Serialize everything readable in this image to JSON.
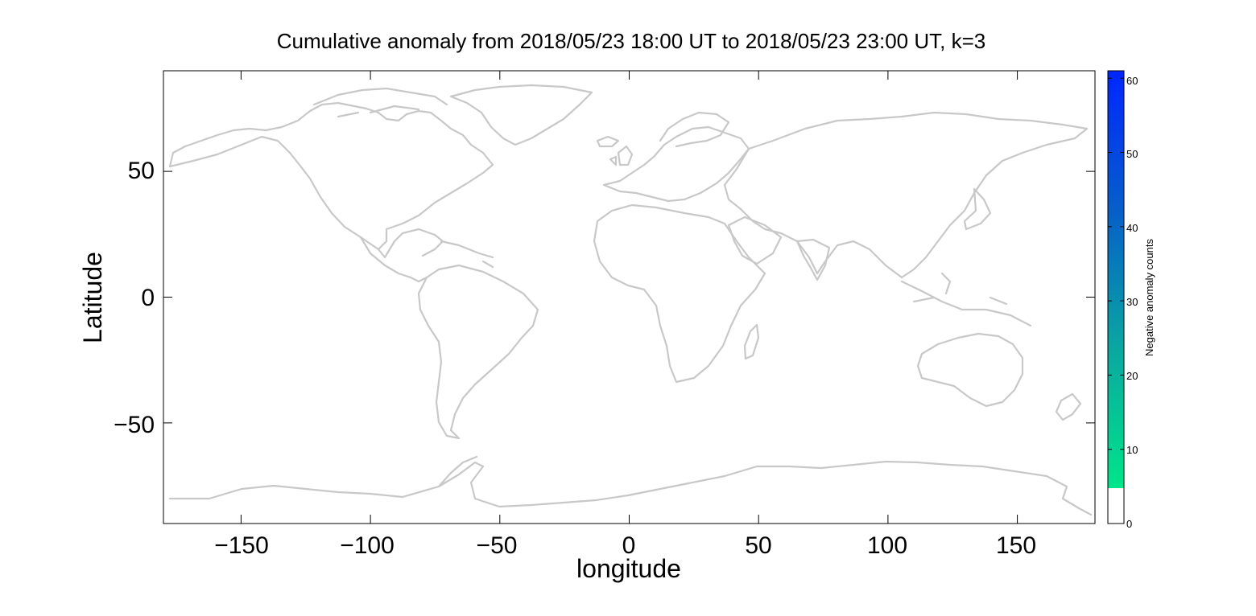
{
  "chart_data": {
    "type": "heatmap",
    "title": "Cumulative anomaly from 2018/05/23 18:00 UT to 2018/05/23 23:00 UT, k=3",
    "xlabel": "longitude",
    "ylabel": "Latitude",
    "xlim": [
      -180,
      180
    ],
    "ylim": [
      -90,
      90
    ],
    "xticks": [
      -150,
      -100,
      -50,
      0,
      50,
      100,
      150
    ],
    "yticks": [
      -50,
      0,
      50
    ],
    "grid": false,
    "coastline_color": "#c8c8c8",
    "colorbar": {
      "label": "Negative anomaly counts",
      "ticks": [
        0,
        10,
        20,
        30,
        40,
        50,
        60
      ],
      "range": [
        0,
        61
      ],
      "low_color": "#ffffff",
      "low_threshold": 5,
      "colors": [
        "#00e58a",
        "#0aa8a0",
        "#0660c8",
        "#0026ff"
      ]
    },
    "values": []
  }
}
